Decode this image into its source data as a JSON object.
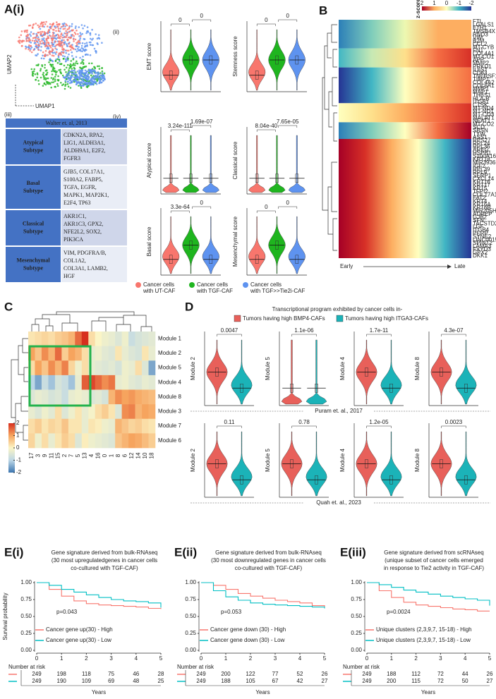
{
  "panel_A": {
    "label_i": "A(i)",
    "umap_x": "UMAP1",
    "umap_y": "UMAP2",
    "label_ii": "(ii)",
    "label_iii": "(iii)",
    "label_iv": "(iv)",
    "violins_ii": [
      {
        "ylabel": "EMT score",
        "pvalues": [
          "0",
          "0"
        ]
      },
      {
        "ylabel": "Stemness score",
        "pvalues": [
          "0",
          "0"
        ]
      }
    ],
    "violins_iv": [
      {
        "ylabel": "Atypical score",
        "pvalues": [
          "3.24e-111",
          "1.69e-07"
        ]
      },
      {
        "ylabel": "Classical score",
        "pvalues": [
          "8.04e-40",
          "7.65e-05"
        ]
      },
      {
        "ylabel": "Basal score",
        "pvalues": [
          "3.3e-64",
          "0"
        ]
      },
      {
        "ylabel": "Mesenchymal score",
        "pvalues": [
          "0",
          "0"
        ]
      }
    ],
    "table": {
      "title": "Walter et. al, 2013",
      "rows": [
        {
          "name": [
            "Atypical",
            "Subtype"
          ],
          "genes": [
            "CDKN2A, RPA2,",
            "LIG1, ALDH3A1,",
            "ALDH9A1, E2F2,",
            "FGFR3"
          ]
        },
        {
          "name": [
            "Basal",
            "Subtype"
          ],
          "genes": [
            "GJB5, COL17A1,",
            "S100A2, FABP5,",
            "TGFA, EGFR,",
            "MAPK1, MAP2K1,",
            "E2F4, TP63"
          ]
        },
        {
          "name": [
            "Classical",
            "Subtype"
          ],
          "genes": [
            "AKR1C1,",
            "AKR1C3, GPX2,",
            "NFE2L2, SOX2,",
            "PIK3CA"
          ]
        },
        {
          "name": [
            "Mesenchymal",
            "Subtype"
          ],
          "genes": [
            "VIM, PDGFRA/B,",
            "COL1A2,",
            "COL3A1, LAMB2,",
            "HGF"
          ]
        }
      ]
    },
    "legend": [
      {
        "name": [
          "Cancer cells",
          "with UT-CAF"
        ],
        "color": "#f8766d"
      },
      {
        "name": [
          "Cancer cells",
          "with TGF-CAF"
        ],
        "color": "#1fb51f"
      },
      {
        "name": [
          "Cancer cells",
          "with TGF>>Tie2i-CAF"
        ],
        "color": "#5e93f0"
      }
    ]
  },
  "panel_B": {
    "label": "B",
    "colorbar_title": "z-score",
    "colorbar_ticks": [
      -2,
      -1,
      0,
      1,
      2
    ],
    "x_start": "Early",
    "x_end": "Late",
    "genes": [
      "FTL",
      "LGALS1",
      "FTH1",
      "TMSB4X",
      "RND3",
      "VIM",
      "B2M",
      "CCL2",
      "MT-CYB",
      "FN1",
      "COL4A1",
      "MT-CO1",
      "APP",
      "MMP2",
      "PRKD1",
      "IL6ST",
      "CD63",
      "TNFRSF11B",
      "TIMP1",
      "COL4A2",
      "COL6A1",
      "MMP1",
      "MAP1",
      "THBS1",
      "HLA-B",
      "ITGB1",
      "CTSK",
      "MT-ND4",
      "MT-ND1",
      "MT-CO3",
      "MALAT1",
      "NEAT1",
      "MT-CO2",
      "SCD",
      "SBSN",
      "TYW",
      "ASS1",
      "RPS27",
      "RPL24",
      "RPL36",
      "AREG",
      "HSPB1",
      "S100A16",
      "KRT18",
      "MIR3936HG",
      "IGF2",
      "RPL39",
      "RPL9",
      "SERP1",
      "CXCL14",
      "KRT16",
      "KRT17",
      "KRT5",
      "TFPI2",
      "COL17A1",
      "FAT2",
      "KRT4",
      "KRT6A",
      "KRT6B",
      "MIR205HG",
      "ADREP",
      "GJB2",
      "SFN",
      "TACSTD2",
      "LGF",
      "ITGB4",
      "PERP",
      "SYNE2",
      "LINC00152",
      "SPINT2",
      "LAMA3",
      "FXYD3",
      "GPX2",
      "DKK1"
    ]
  },
  "panel_C": {
    "label": "C",
    "modules": [
      "Module 1",
      "Module 2",
      "Module 5",
      "Module 4",
      "Module 8",
      "Module 3",
      "Module 7",
      "Module 6"
    ],
    "clusters": [
      "17",
      "3",
      "9",
      "11",
      "15",
      "2",
      "7",
      "5",
      "13",
      "4",
      "16",
      "0",
      "1",
      "8",
      "6",
      "12",
      "14",
      "10",
      "18"
    ],
    "clim": [
      -2,
      2
    ],
    "colorbar_ticks": [
      2,
      1,
      0,
      -1,
      -2
    ],
    "colorscale": [
      "#3b75af",
      "#bcd7e6",
      "#fbf5c6",
      "#f6a45e",
      "#d7301f"
    ],
    "values": [
      [
        0.2,
        0.3,
        0.4,
        0.3,
        0.5,
        0.6,
        0.8,
        1.5,
        2,
        0.3,
        0,
        -0.2,
        -0.3,
        -0.5,
        -0.2,
        -0.8,
        -0.6,
        -0.5,
        -0.4
      ],
      [
        1,
        0.6,
        1.2,
        0.8,
        1.5,
        0.5,
        1,
        0.8,
        0.3,
        -0.3,
        -0.2,
        -0.4,
        -0.5,
        0.2,
        -0.3,
        -0.5,
        -0.6,
        0.2,
        -0.3
      ],
      [
        0.3,
        1,
        0.6,
        1.2,
        0.8,
        1.3,
        0.4,
        -0.2,
        0.3,
        -0.3,
        -0.4,
        -0.5,
        -0.4,
        -0.6,
        -0.2,
        -0.3,
        0.3,
        -0.5,
        -1.5
      ],
      [
        -1,
        -1.5,
        -0.8,
        -1.2,
        -0.6,
        -0.8,
        -1.2,
        -0.3,
        1.6,
        1.8,
        1.5,
        1.2,
        1.4,
        -0.3,
        -0.2,
        -0.4,
        -0.5,
        -0.3,
        -0.4
      ],
      [
        -0.5,
        -0.3,
        -0.4,
        -0.6,
        -0.5,
        -0.8,
        -0.3,
        -0.2,
        -0.3,
        -0.5,
        -0.4,
        -0.6,
        0.8,
        1.2,
        1,
        1.1,
        0.9,
        0.8,
        0.7
      ],
      [
        -0.3,
        -0.5,
        -0.2,
        -0.4,
        0.3,
        -0.5,
        -0.2,
        0.2,
        -0.3,
        -0.1,
        0.3,
        0.5,
        0.2,
        -0.5,
        1.2,
        1.3,
        0.8,
        1,
        0.9
      ],
      [
        0.3,
        0.5,
        0.2,
        0.4,
        0.3,
        0.6,
        0.2,
        0.2,
        -0.3,
        0.2,
        0.1,
        -0.2,
        -0.3,
        0.8,
        0.6,
        0.4,
        0.5,
        0.3,
        0.2
      ],
      [
        0.4,
        -0.2,
        0.3,
        -0.3,
        0.2,
        0.5,
        0.3,
        -0.5,
        0.1,
        -0.2,
        -0.3,
        -0.4,
        -0.5,
        0.6,
        0.8,
        1,
        0.9,
        0.7,
        0.5
      ]
    ]
  },
  "panel_D": {
    "label": "D",
    "title": "Transcriptional program exhibited by cancer cells in-",
    "legend": [
      {
        "name": "Tumors having high BMP4-CAFs",
        "color": "#e8605a"
      },
      {
        "name": "Tumors having high ITGA3-CAFs",
        "color": "#1bb3b8"
      }
    ],
    "rows": [
      {
        "source": "Puram et. al., 2017",
        "panels": [
          {
            "ylabel": "Module 2",
            "pvalue": "0.0047"
          },
          {
            "ylabel": "Module 5",
            "pvalue": "1.1e-06"
          },
          {
            "ylabel": "Module 4",
            "pvalue": "1.7e-11"
          },
          {
            "ylabel": "Module 8",
            "pvalue": "4.3e-07"
          }
        ]
      },
      {
        "source": "Quah et. al., 2023",
        "panels": [
          {
            "ylabel": "Module 2",
            "pvalue": "0.11"
          },
          {
            "ylabel": "Module 5",
            "pvalue": "0.78"
          },
          {
            "ylabel": "Module 4",
            "pvalue": "1.2e-05"
          },
          {
            "ylabel": "Module 8",
            "pvalue": "0.0023"
          }
        ]
      }
    ]
  },
  "panel_E": {
    "ylabel": "Survival probability",
    "xlabel": "Years",
    "risk_title": "Number at risk",
    "xlim": [
      0,
      5
    ],
    "xticks": [
      0,
      1,
      2,
      3,
      4,
      5
    ],
    "ylim": [
      0,
      1
    ],
    "yticks": [
      {
        "value": 0,
        "label": "0.00"
      },
      {
        "value": 0.25,
        "label": "0.25"
      },
      {
        "value": 0.5,
        "label": "0.50"
      },
      {
        "value": 0.75,
        "label": "0.75"
      },
      {
        "value": 1,
        "label": "1.00"
      }
    ],
    "plots": [
      {
        "label": "E(i)",
        "title": [
          "Gene signature derived from bulk-RNAseq",
          "(30 most upregulatedgenes in cancer cells",
          "co-cultured with TGF-CAF)"
        ],
        "pvalue": "p=0.043",
        "series": [
          {
            "name": "Cancer gene up(30) - High",
            "color": "#f8766d",
            "x": [
              0,
              0.5,
              1,
              1.5,
              2,
              2.5,
              3,
              3.5,
              4,
              4.5,
              5
            ],
            "values": [
              1,
              0.9,
              0.8,
              0.73,
              0.69,
              0.67,
              0.66,
              0.65,
              0.64,
              0.62,
              0.61
            ],
            "risk": [
              249,
              198,
              118,
              75,
              46,
              28
            ]
          },
          {
            "name": "Cancer gene up(30) - Low",
            "color": "#00bfc4",
            "x": [
              0,
              0.5,
              1,
              1.5,
              2,
              2.5,
              3,
              3.5,
              4,
              4.5,
              5
            ],
            "values": [
              1,
              0.96,
              0.9,
              0.86,
              0.82,
              0.78,
              0.75,
              0.73,
              0.72,
              0.7,
              0.63
            ],
            "risk": [
              249,
              190,
              109,
              69,
              48,
              25
            ]
          }
        ]
      },
      {
        "label": "E(ii)",
        "title": [
          "Gene signature derived from bulk-RNAseq",
          "(30 most downregulated genes in cancer cells",
          "co-cultured with TGF-CAF)"
        ],
        "pvalue": "p=0.053",
        "series": [
          {
            "name": "Cancer gene down (30) - High",
            "color": "#f8766d",
            "x": [
              0,
              0.5,
              1,
              1.5,
              2,
              2.5,
              3,
              3.5,
              4,
              4.5,
              5
            ],
            "values": [
              1,
              0.96,
              0.9,
              0.84,
              0.8,
              0.77,
              0.74,
              0.72,
              0.7,
              0.66,
              0.63
            ],
            "risk": [
              249,
              200,
              122,
              77,
              52,
              26
            ]
          },
          {
            "name": "Cancer gene down (30) - Low",
            "color": "#00bfc4",
            "x": [
              0,
              0.5,
              1,
              1.5,
              2,
              2.5,
              3,
              3.5,
              4,
              4.5,
              5
            ],
            "values": [
              1,
              0.88,
              0.79,
              0.74,
              0.7,
              0.68,
              0.67,
              0.66,
              0.65,
              0.64,
              0.62
            ],
            "risk": [
              249,
              188,
              105,
              67,
              42,
              27
            ]
          }
        ]
      },
      {
        "label": "E(iii)",
        "title": [
          "Gene signature derived from scRNAseq",
          "(unique subset of cancer cells emerged",
          "in response to Tie2 activity in TGF-CAF)"
        ],
        "pvalue": "p=0.0024",
        "series": [
          {
            "name": "Unique clusters (2,3,9,7, 15-18) - High",
            "color": "#f8766d",
            "x": [
              0,
              0.5,
              1,
              1.5,
              2,
              2.5,
              3,
              3.5,
              4,
              4.5,
              5
            ],
            "values": [
              1,
              0.88,
              0.78,
              0.71,
              0.67,
              0.65,
              0.63,
              0.61,
              0.6,
              0.58,
              0.58
            ],
            "risk": [
              249,
              188,
              112,
              72,
              44,
              26
            ]
          },
          {
            "name": "Unique clusters (2,3,9,7, 15-18) - Low",
            "color": "#00bfc4",
            "x": [
              0,
              0.5,
              1,
              1.5,
              2,
              2.5,
              3,
              3.5,
              4,
              4.5,
              5
            ],
            "values": [
              1,
              0.97,
              0.93,
              0.89,
              0.86,
              0.83,
              0.8,
              0.78,
              0.76,
              0.74,
              0.66
            ],
            "risk": [
              249,
              200,
              115,
              72,
              50,
              27
            ]
          }
        ]
      }
    ]
  }
}
